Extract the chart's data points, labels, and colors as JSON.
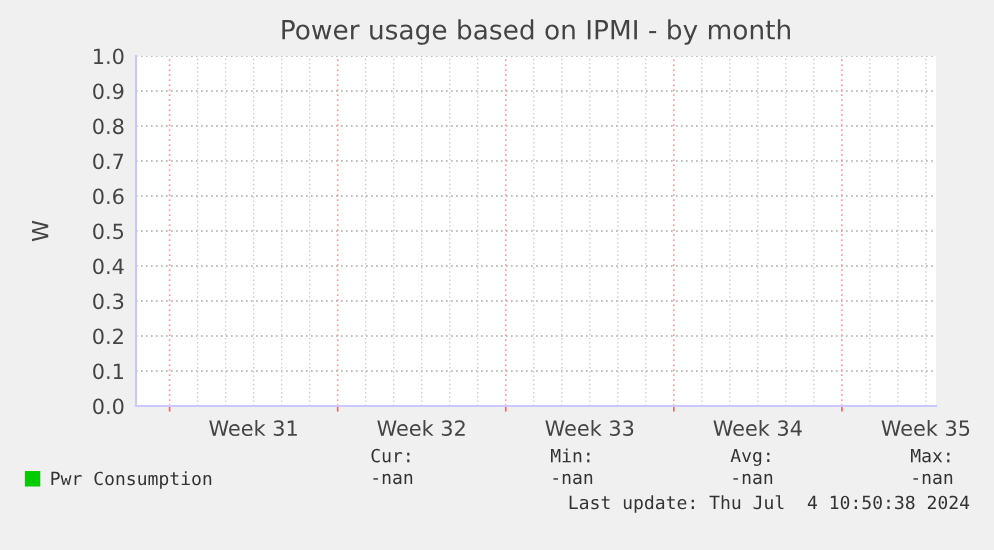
{
  "chart_data": {
    "type": "line",
    "title": "Power usage based on IPMI - by month",
    "ylabel": "W",
    "categories": [
      "Week 31",
      "Week 32",
      "Week 33",
      "Week 34",
      "Week 35"
    ],
    "series": [
      {
        "name": "Pwr Consumption",
        "color": "#00cc00",
        "values": [
          null,
          null,
          null,
          null,
          null
        ]
      }
    ],
    "ylim": [
      0,
      1
    ],
    "yticks": [
      {
        "value": 0,
        "label": "0.0"
      },
      {
        "value": 0.1,
        "label": "0.1"
      },
      {
        "value": 0.2,
        "label": "0.2"
      },
      {
        "value": 0.3,
        "label": "0.3"
      },
      {
        "value": 0.4,
        "label": "0.4"
      },
      {
        "value": 0.5,
        "label": "0.5"
      },
      {
        "value": 0.6,
        "label": "0.6"
      },
      {
        "value": 0.7,
        "label": "0.7"
      },
      {
        "value": 0.8,
        "label": "0.8"
      },
      {
        "value": 0.9,
        "label": "0.9"
      },
      {
        "value": 1,
        "label": "1.0"
      }
    ],
    "grid": true,
    "legend": "bottom",
    "annotations": [
      "Cur:\n-nan",
      "Min:\n-nan",
      "Avg:\n-nan",
      "Max:\n-nan",
      "Last update: Thu Jul  4 10:50:38 2024"
    ]
  }
}
